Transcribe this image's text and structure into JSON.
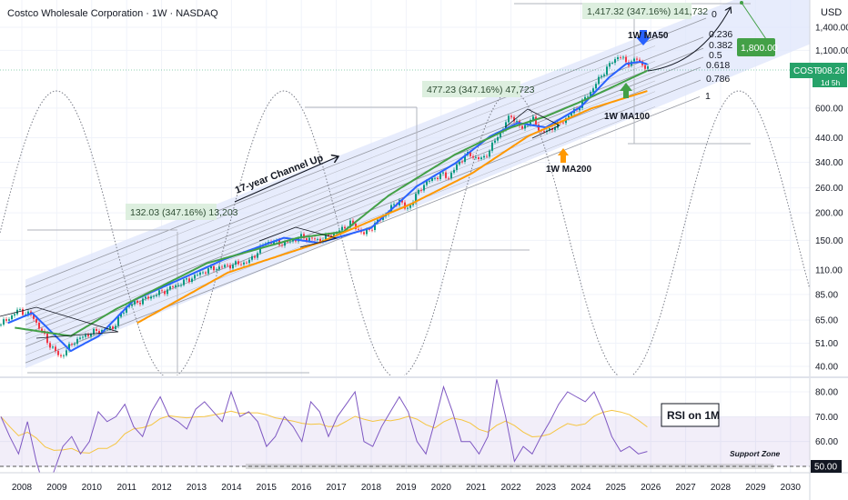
{
  "header": {
    "title": "Costco Wholesale Corporation · 1W · NASDAQ",
    "currency": "USD"
  },
  "price_label": {
    "symbol": "COST",
    "price": "908.26",
    "countdown": "1d 5h",
    "color": "#26a269"
  },
  "target_label": {
    "text": "1,800.00",
    "color": "#43a047"
  },
  "measurements": [
    {
      "text": "132.03 (347.16%) 13,203"
    },
    {
      "text": "477.23 (347.16%) 47,723"
    },
    {
      "text": "1,417.32 (347.16%) 141,732"
    }
  ],
  "annotations": {
    "channel": "17-year Channel Up",
    "ma50": "1W MA50",
    "ma100": "1W MA100",
    "ma200": "1W MA200",
    "rsi_title": "RSI on 1M",
    "support": "Support Zone"
  },
  "colors": {
    "up": "#089981",
    "down": "#f23645",
    "ma50": "#2962ff",
    "ma100": "#43a047",
    "ma200": "#ff9800",
    "rsi": "#7e57c2",
    "rsi_ma": "#f5c542",
    "channel": "#dfe6fb"
  },
  "chart_data": {
    "type": "line",
    "title": "Costco Wholesale Corporation · 1W · NASDAQ",
    "yscale": "log",
    "ylim": [
      37,
      1700
    ],
    "xlim": [
      2007.4,
      2030.6
    ],
    "x_ticks": [
      "2008",
      "2009",
      "2010",
      "2011",
      "2012",
      "2013",
      "2014",
      "2015",
      "2016",
      "2017",
      "2018",
      "2019",
      "2020",
      "2021",
      "2022",
      "2023",
      "2024",
      "2025",
      "2026",
      "2027",
      "2028",
      "2029",
      "2030"
    ],
    "y_ticks": [
      "1,400.00",
      "1,100.00",
      "600.00",
      "440.00",
      "340.00",
      "260.00",
      "200.00",
      "150.00",
      "110.00",
      "85.00",
      "65.00",
      "51.00",
      "40.00"
    ],
    "y_tick_values": [
      1400,
      1100,
      600,
      440,
      340,
      260,
      200,
      150,
      110,
      85,
      65,
      51,
      40
    ],
    "series": [
      {
        "name": "COST",
        "x": [
          2007.4,
          2007.9,
          2008.3,
          2008.8,
          2009.1,
          2009.5,
          2010.0,
          2010.6,
          2011.0,
          2011.6,
          2012.2,
          2012.8,
          2013.3,
          2013.9,
          2014.5,
          2015.0,
          2015.5,
          2016.0,
          2016.5,
          2017.0,
          2017.4,
          2017.8,
          2018.3,
          2018.8,
          2019.0,
          2019.5,
          2020.0,
          2020.2,
          2020.7,
          2021.2,
          2021.6,
          2022.0,
          2022.3,
          2022.6,
          2022.9,
          2023.4,
          2023.9,
          2024.3,
          2024.7,
          2025.1,
          2025.3,
          2025.6,
          2025.9
        ],
        "values": [
          62,
          72,
          68,
          50,
          44,
          52,
          57,
          60,
          75,
          82,
          90,
          100,
          110,
          115,
          120,
          148,
          145,
          155,
          150,
          162,
          180,
          160,
          190,
          230,
          205,
          270,
          300,
          290,
          370,
          350,
          440,
          560,
          480,
          540,
          460,
          510,
          600,
          720,
          900,
          1050,
          960,
          1000,
          908
        ]
      },
      {
        "name": "1W MA50",
        "x": [
          2007.6,
          2008.3,
          2009.4,
          2010.2,
          2011.2,
          2013.8,
          2015.5,
          2016.5,
          2018.0,
          2019.3,
          2020.4,
          2021.4,
          2022.2,
          2023.0,
          2024.0,
          2024.8,
          2025.3,
          2025.7,
          2025.9
        ],
        "values": [
          63,
          70,
          47,
          55,
          80,
          123,
          154,
          146,
          171,
          264,
          336,
          446,
          514,
          490,
          608,
          826,
          955,
          975,
          950
        ]
      },
      {
        "name": "1W MA100",
        "x": [
          2007.8,
          2009.4,
          2010.7,
          2013.3,
          2015.9,
          2017.2,
          2018.5,
          2020.4,
          2022.0,
          2023.0,
          2024.1,
          2025.9
        ],
        "values": [
          60,
          55,
          73,
          118,
          154,
          164,
          240,
          369,
          490,
          550,
          652,
          888
        ]
      },
      {
        "name": "1W MA200",
        "x": [
          2011.3,
          2013.9,
          2016.5,
          2019.1,
          2020.9,
          2022.5,
          2024.3,
          2025.9
        ],
        "values": [
          63,
          107,
          146,
          218,
          304,
          448,
          598,
          718
        ]
      }
    ],
    "fib_levels": [
      "0",
      "0.236",
      "0.382",
      "0.5",
      "0.618",
      "0.786",
      "1"
    ],
    "target": 1800,
    "rsi": {
      "title": "RSI on 1M",
      "y_ticks": [
        "80.00",
        "70.00",
        "60.00",
        "50.00"
      ],
      "y_tick_values": [
        80,
        70,
        60,
        50
      ],
      "band": [
        50,
        70
      ],
      "x_range": [
        2007.4,
        2025.9
      ],
      "values": [
        70,
        62,
        55,
        68,
        52,
        40,
        48,
        58,
        62,
        55,
        60,
        72,
        68,
        70,
        75,
        66,
        62,
        72,
        78,
        70,
        68,
        65,
        73,
        76,
        72,
        68,
        80,
        70,
        72,
        68,
        58,
        62,
        70,
        66,
        60,
        76,
        72,
        62,
        70,
        75,
        80,
        60,
        58,
        66,
        72,
        78,
        72,
        60,
        55,
        68,
        82,
        72,
        60,
        60,
        55,
        62,
        85,
        70,
        52,
        58,
        55,
        62,
        68,
        75,
        80,
        78,
        76,
        80,
        72,
        62,
        56,
        58,
        55,
        56
      ]
    }
  }
}
